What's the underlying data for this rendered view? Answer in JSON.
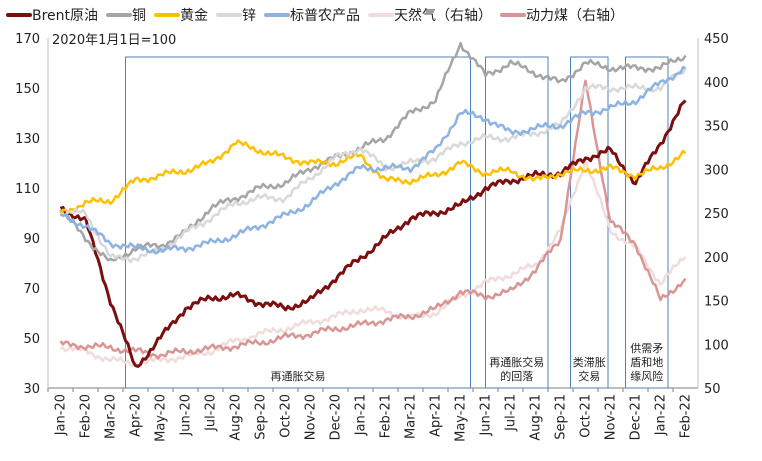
{
  "chart_data": {
    "type": "line",
    "note": "2020年1月1日=100",
    "left_axis": {
      "min": 30,
      "max": 170,
      "ticks": [
        30,
        50,
        70,
        90,
        110,
        130,
        150,
        170
      ]
    },
    "right_axis": {
      "min": 50,
      "max": 450,
      "ticks": [
        50,
        100,
        150,
        200,
        250,
        300,
        350,
        400,
        450
      ]
    },
    "x_labels": [
      "Jan-20",
      "Feb-20",
      "Mar-20",
      "Apr-20",
      "May-20",
      "Jun-20",
      "Jul-20",
      "Aug-20",
      "Sep-20",
      "Oct-20",
      "Nov-20",
      "Dec-20",
      "Jan-21",
      "Feb-21",
      "Mar-21",
      "Apr-21",
      "May-21",
      "Jun-21",
      "Jul-21",
      "Aug-21",
      "Sep-21",
      "Oct-21",
      "Nov-21",
      "Dec-21",
      "Jan-22",
      "Feb-22"
    ],
    "series": [
      {
        "name": "Brent原油",
        "axis": "left",
        "color": "#7b0f0f",
        "width": 3,
        "values": [
          102,
          97,
          65,
          38,
          50,
          62,
          66,
          67,
          64,
          62,
          65,
          74,
          82,
          90,
          98,
          100,
          103,
          110,
          113,
          115,
          116,
          122,
          125,
          112,
          128,
          145
        ]
      },
      {
        "name": "铜",
        "axis": "left",
        "color": "#a5a5a5",
        "width": 2.5,
        "values": [
          101,
          90,
          80,
          86,
          87,
          92,
          102,
          106,
          110,
          112,
          118,
          122,
          126,
          130,
          140,
          145,
          168,
          155,
          160,
          156,
          152,
          160,
          158,
          158,
          158,
          163
        ]
      },
      {
        "name": "黄金",
        "axis": "left",
        "color": "#ffc000",
        "width": 2.5,
        "values": [
          100,
          104,
          105,
          113,
          115,
          117,
          120,
          128,
          125,
          122,
          120,
          120,
          123,
          113,
          113,
          115,
          120,
          116,
          117,
          113,
          116,
          117,
          118,
          115,
          118,
          124
        ]
      },
      {
        "name": "锌",
        "axis": "left",
        "color": "#d9d9d9",
        "width": 2.5,
        "values": [
          100,
          100,
          82,
          82,
          85,
          92,
          98,
          104,
          106,
          106,
          114,
          122,
          126,
          118,
          120,
          122,
          128,
          130,
          130,
          132,
          135,
          150,
          150,
          150,
          150,
          158
        ]
      },
      {
        "name": "标普农产品",
        "axis": "left",
        "color": "#8db3e2",
        "width": 2.5,
        "values": [
          99,
          95,
          88,
          86,
          85,
          86,
          88,
          91,
          95,
          99,
          104,
          112,
          118,
          118,
          118,
          125,
          140,
          138,
          132,
          134,
          135,
          140,
          142,
          145,
          152,
          158
        ]
      },
      {
        "name": "天然气（右轴）",
        "axis": "right",
        "color": "#f2dcdb",
        "width": 2.5,
        "values": [
          97,
          92,
          82,
          78,
          82,
          86,
          92,
          104,
          112,
          118,
          125,
          132,
          140,
          138,
          130,
          136,
          155,
          170,
          180,
          190,
          230,
          310,
          230,
          210,
          170,
          200
        ]
      },
      {
        "name": "动力煤（右轴）",
        "axis": "right",
        "color": "#d99594",
        "width": 2.5,
        "values": [
          100,
          98,
          96,
          92,
          88,
          92,
          95,
          98,
          102,
          108,
          112,
          118,
          122,
          128,
          132,
          140,
          160,
          155,
          160,
          185,
          220,
          400,
          240,
          215,
          150,
          175
        ]
      }
    ],
    "regions": [
      {
        "label": "再通胀交易",
        "start": 3.1,
        "end": 16.9
      },
      {
        "label": "再通胀交易\n的回落",
        "start": 17.5,
        "end": 20.0
      },
      {
        "label": "类滞胀\n交易",
        "start": 20.9,
        "end": 22.4
      },
      {
        "label": "供需矛\n盾和地\n缘风险",
        "start": 23.1,
        "end": 24.8
      }
    ]
  }
}
